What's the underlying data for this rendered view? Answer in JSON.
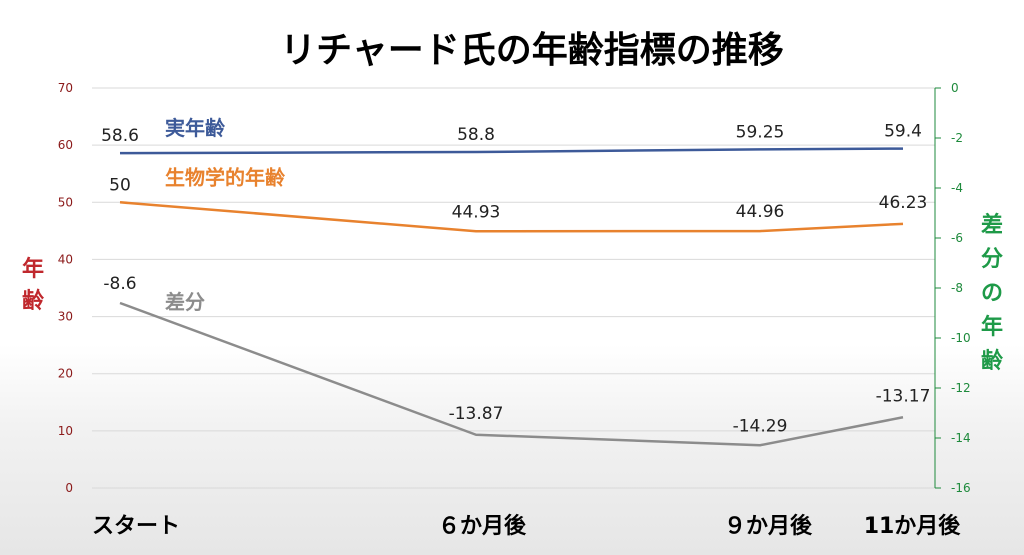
{
  "chart_data": {
    "type": "line",
    "title": "リチャード氏の年齢指標の推移",
    "categories": [
      "スタート",
      "６か月後",
      "９か月後",
      "11か月後"
    ],
    "x_months": [
      0,
      6,
      9,
      11
    ],
    "y_left": {
      "label": "年齢",
      "min": 0,
      "max": 70,
      "ticks": [
        0,
        10,
        20,
        30,
        40,
        50,
        60,
        70
      ],
      "color": "#c0282d"
    },
    "y_right": {
      "label": "差分の年齢",
      "min": -16,
      "max": 0,
      "ticks": [
        0,
        -2,
        -4,
        -6,
        -8,
        -10,
        -12,
        -14,
        -16
      ],
      "color": "#1e9a48"
    },
    "series": [
      {
        "name": "実年齢",
        "axis": "left",
        "color": "#3d5a99",
        "values": [
          58.6,
          58.8,
          59.25,
          59.4
        ],
        "labels": [
          "58.6",
          "58.8",
          "59.25",
          "59.4"
        ]
      },
      {
        "name": "生物学的年齢",
        "axis": "left",
        "color": "#e8822e",
        "values": [
          50,
          44.93,
          44.96,
          46.23
        ],
        "labels": [
          "50",
          "44.93",
          "44.96",
          "46.23"
        ]
      },
      {
        "name": "差分",
        "axis": "right",
        "color": "#8c8c8c",
        "values": [
          -8.6,
          -13.87,
          -14.29,
          -13.17
        ],
        "labels": [
          "-8.6",
          "-13.87",
          "-14.29",
          "-13.17"
        ]
      }
    ],
    "grid": true
  }
}
